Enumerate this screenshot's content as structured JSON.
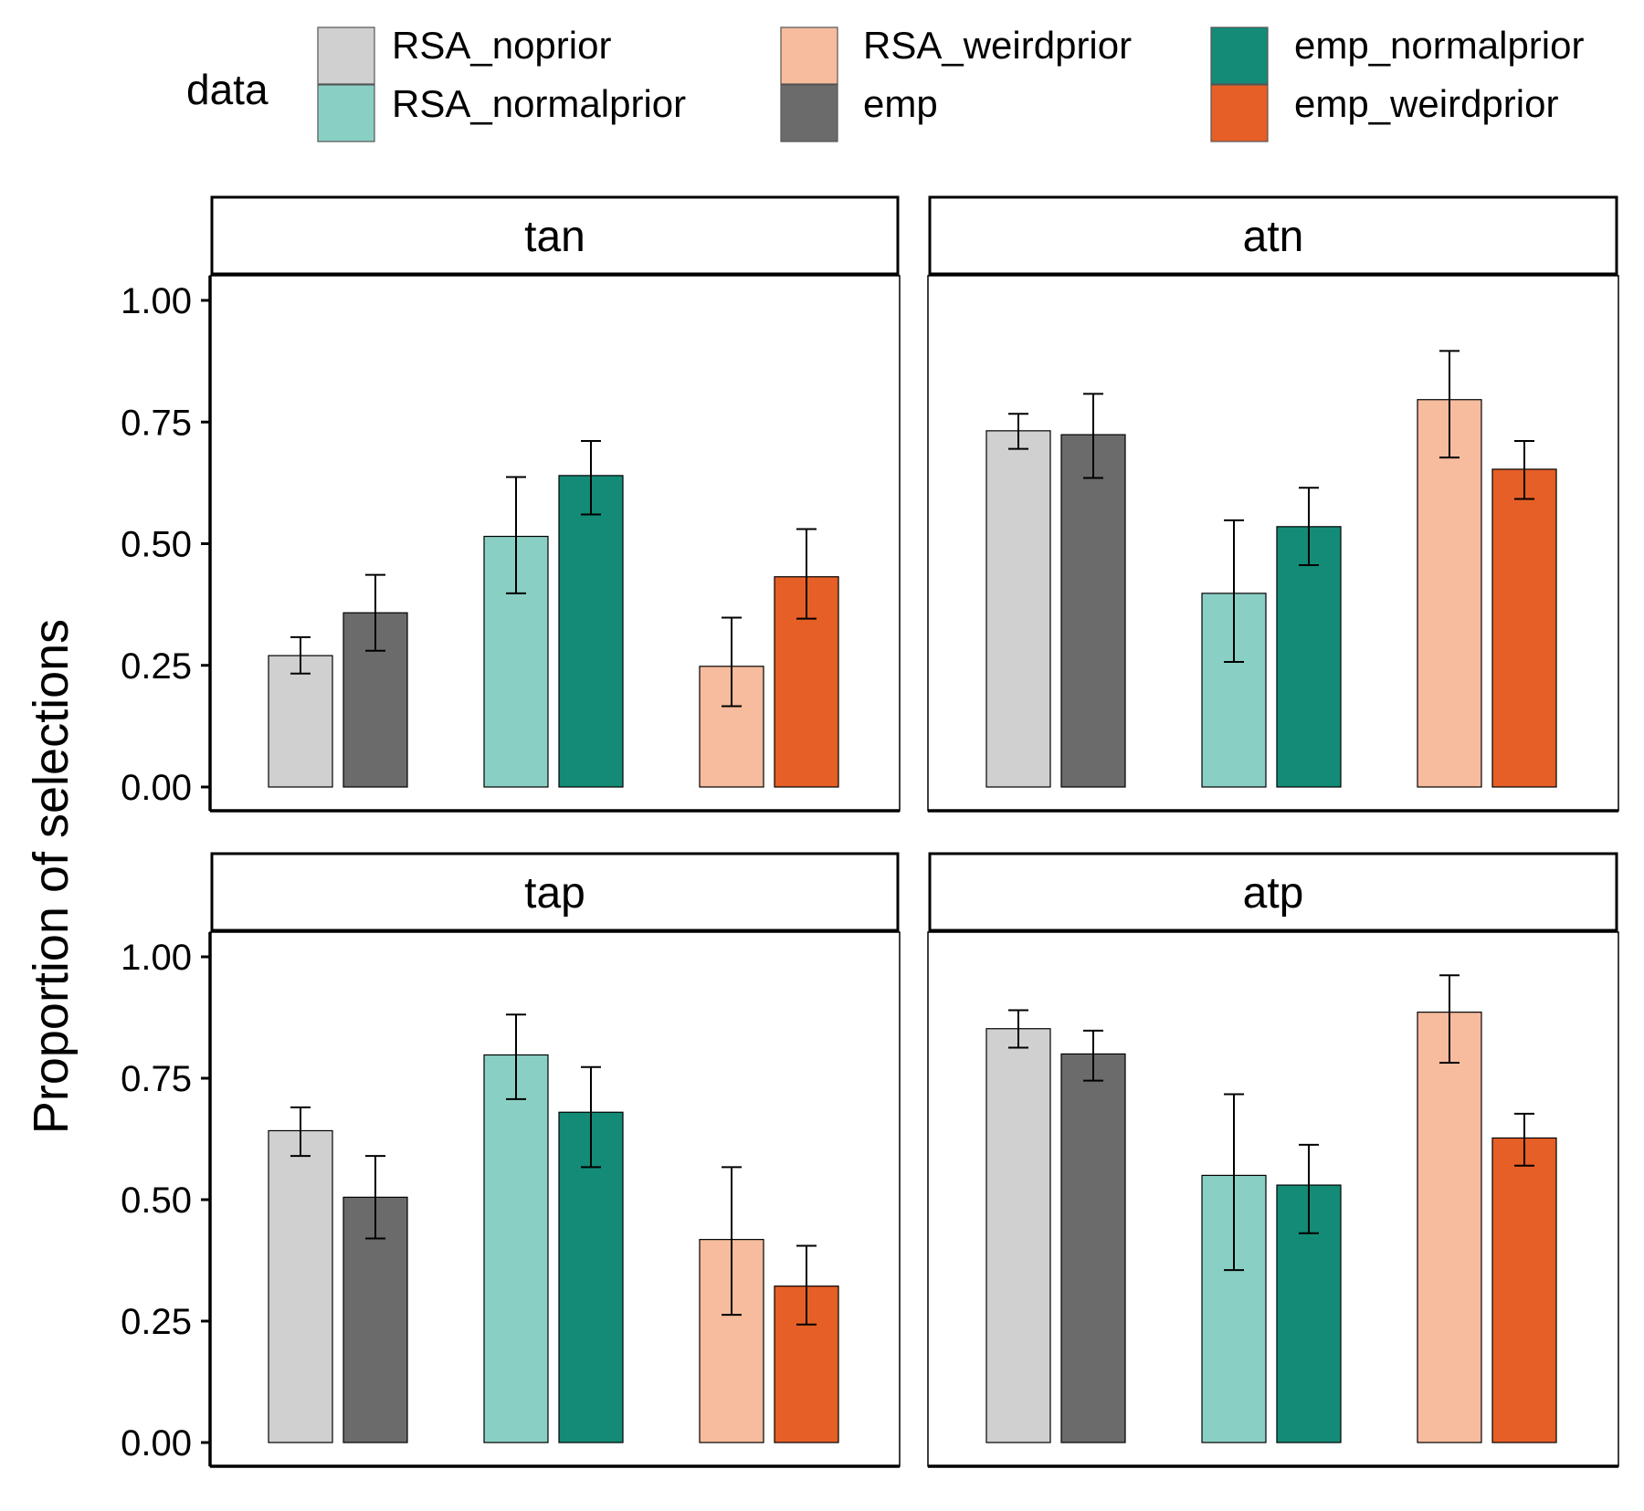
{
  "chart_data": {
    "type": "bar",
    "ylabel": "Proportion of selections",
    "xlabel": "",
    "ylim": [
      0,
      1.05
    ],
    "yticks": [
      0,
      0.25,
      0.5,
      0.75,
      1.0
    ],
    "ytick_labels": [
      "0.00",
      "0.25",
      "0.50",
      "0.75",
      "1.00"
    ],
    "legend": {
      "title": "data",
      "placement": "top",
      "items": [
        {
          "key": "RSA_noprior",
          "label": "RSA_noprior",
          "color": "#d0d0d0"
        },
        {
          "key": "RSA_normalprior",
          "label": "RSA_normalprior",
          "color": "#8acfc4"
        },
        {
          "key": "RSA_weirdprior",
          "label": "RSA_weirdprior",
          "color": "#f6bc9d"
        },
        {
          "key": "emp",
          "label": "emp",
          "color": "#6b6b6b"
        },
        {
          "key": "emp_normalprior",
          "label": "emp_normalprior",
          "color": "#138b77"
        },
        {
          "key": "emp_weirdprior",
          "label": "emp_weirdprior",
          "color": "#e55f27"
        }
      ]
    },
    "bar_order": [
      "RSA_noprior",
      "emp",
      "RSA_normalprior",
      "emp_normalprior",
      "RSA_weirdprior",
      "emp_weirdprior"
    ],
    "facets": [
      {
        "name": "tan",
        "values": [
          {
            "series": "RSA_noprior",
            "value": 0.27,
            "lo": 0.233,
            "hi": 0.308
          },
          {
            "series": "emp",
            "value": 0.358,
            "lo": 0.28,
            "hi": 0.436
          },
          {
            "series": "RSA_normalprior",
            "value": 0.515,
            "lo": 0.398,
            "hi": 0.637
          },
          {
            "series": "emp_normalprior",
            "value": 0.64,
            "lo": 0.56,
            "hi": 0.711
          },
          {
            "series": "RSA_weirdprior",
            "value": 0.248,
            "lo": 0.166,
            "hi": 0.348
          },
          {
            "series": "emp_weirdprior",
            "value": 0.432,
            "lo": 0.346,
            "hi": 0.53
          }
        ]
      },
      {
        "name": "atn",
        "values": [
          {
            "series": "RSA_noprior",
            "value": 0.732,
            "lo": 0.695,
            "hi": 0.767
          },
          {
            "series": "emp",
            "value": 0.724,
            "lo": 0.635,
            "hi": 0.808
          },
          {
            "series": "RSA_normalprior",
            "value": 0.398,
            "lo": 0.257,
            "hi": 0.548
          },
          {
            "series": "emp_normalprior",
            "value": 0.535,
            "lo": 0.456,
            "hi": 0.615
          },
          {
            "series": "RSA_weirdprior",
            "value": 0.796,
            "lo": 0.677,
            "hi": 0.896
          },
          {
            "series": "emp_weirdprior",
            "value": 0.653,
            "lo": 0.592,
            "hi": 0.711
          }
        ]
      },
      {
        "name": "tap",
        "values": [
          {
            "series": "RSA_noprior",
            "value": 0.642,
            "lo": 0.59,
            "hi": 0.69
          },
          {
            "series": "emp",
            "value": 0.505,
            "lo": 0.42,
            "hi": 0.59
          },
          {
            "series": "RSA_normalprior",
            "value": 0.798,
            "lo": 0.707,
            "hi": 0.881
          },
          {
            "series": "emp_normalprior",
            "value": 0.68,
            "lo": 0.567,
            "hi": 0.773
          },
          {
            "series": "RSA_weirdprior",
            "value": 0.418,
            "lo": 0.263,
            "hi": 0.567
          },
          {
            "series": "emp_weirdprior",
            "value": 0.322,
            "lo": 0.243,
            "hi": 0.405
          }
        ]
      },
      {
        "name": "atp",
        "values": [
          {
            "series": "RSA_noprior",
            "value": 0.852,
            "lo": 0.813,
            "hi": 0.89
          },
          {
            "series": "emp",
            "value": 0.8,
            "lo": 0.745,
            "hi": 0.848
          },
          {
            "series": "RSA_normalprior",
            "value": 0.55,
            "lo": 0.355,
            "hi": 0.717
          },
          {
            "series": "emp_normalprior",
            "value": 0.53,
            "lo": 0.431,
            "hi": 0.613
          },
          {
            "series": "RSA_weirdprior",
            "value": 0.886,
            "lo": 0.782,
            "hi": 0.962
          },
          {
            "series": "emp_weirdprior",
            "value": 0.627,
            "lo": 0.57,
            "hi": 0.677
          }
        ]
      }
    ]
  }
}
